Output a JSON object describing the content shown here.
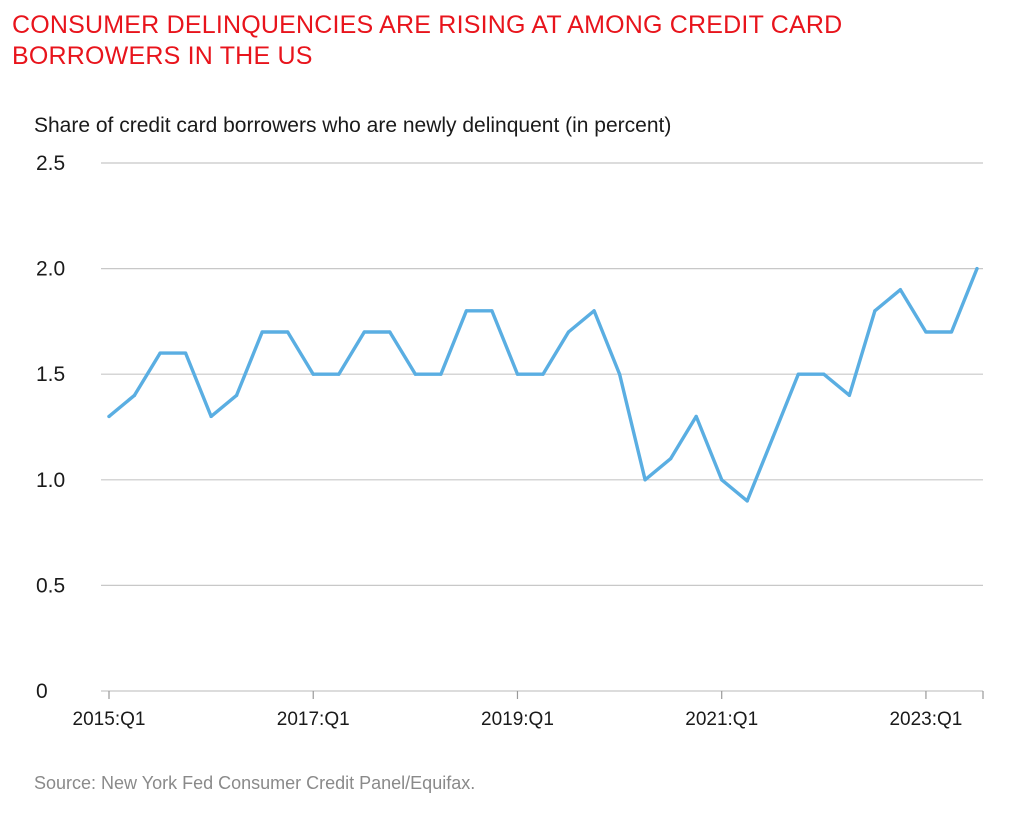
{
  "title": "CONSUMER DELINQUENCIES ARE RISING AT AMONG CREDIT CARD BORROWERS IN THE US",
  "source": "Source: New York Fed Consumer Credit Panel/Equifax.",
  "colors": {
    "title": "#e8141c",
    "line": "#5aaee2",
    "grid": "#c8c8c8",
    "source": "#8a8a8a"
  },
  "chart_data": {
    "type": "line",
    "title": "CONSUMER DELINQUENCIES ARE RISING AT AMONG CREDIT CARD BORROWERS IN THE US",
    "subtitle": "Share of credit card borrowers who are newly delinquent (in percent)",
    "xlabel": "",
    "ylabel": "",
    "ylim": [
      0,
      2.5
    ],
    "yticks": [
      "0",
      "0.5",
      "1.0",
      "1.5",
      "2.0",
      "2.5"
    ],
    "xtick_labels": [
      "2015:Q1",
      "2017:Q1",
      "2019:Q1",
      "2021:Q1",
      "2023:Q1"
    ],
    "grid": true,
    "x": [
      "2015:Q1",
      "2015:Q2",
      "2015:Q3",
      "2015:Q4",
      "2016:Q1",
      "2016:Q2",
      "2016:Q3",
      "2016:Q4",
      "2017:Q1",
      "2017:Q2",
      "2017:Q3",
      "2017:Q4",
      "2018:Q1",
      "2018:Q2",
      "2018:Q3",
      "2018:Q4",
      "2019:Q1",
      "2019:Q2",
      "2019:Q3",
      "2019:Q4",
      "2020:Q1",
      "2020:Q2",
      "2020:Q3",
      "2020:Q4",
      "2021:Q1",
      "2021:Q2",
      "2021:Q3",
      "2021:Q4",
      "2022:Q1",
      "2022:Q2",
      "2022:Q3",
      "2022:Q4",
      "2023:Q1",
      "2023:Q2",
      "2023:Q3"
    ],
    "series": [
      {
        "name": "",
        "values": [
          1.3,
          1.4,
          1.6,
          1.6,
          1.3,
          1.4,
          1.7,
          1.7,
          1.5,
          1.5,
          1.7,
          1.7,
          1.5,
          1.5,
          1.8,
          1.8,
          1.5,
          1.5,
          1.7,
          1.8,
          1.5,
          1.0,
          1.1,
          1.3,
          1.0,
          0.9,
          1.2,
          1.5,
          1.5,
          1.4,
          1.8,
          1.9,
          1.7,
          1.7,
          2.0
        ]
      }
    ]
  }
}
